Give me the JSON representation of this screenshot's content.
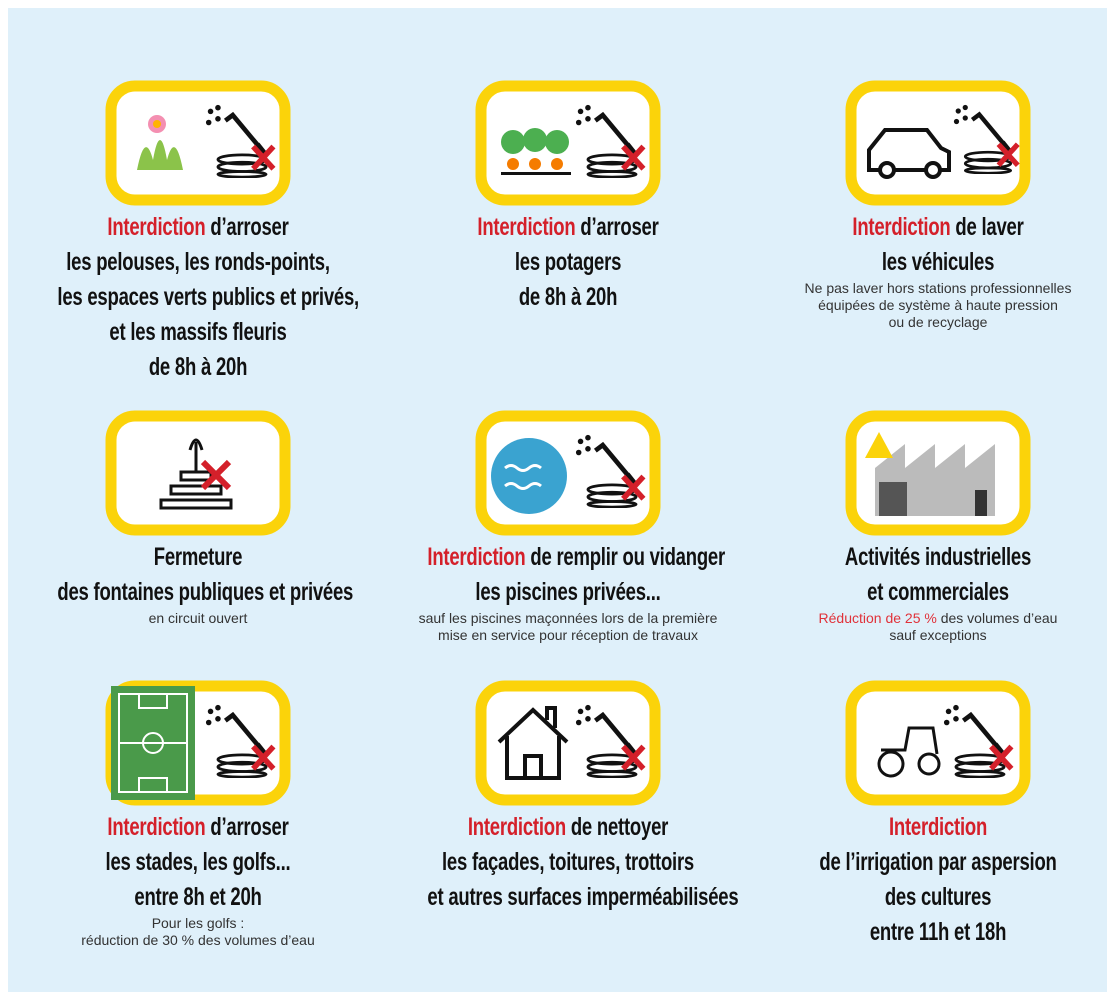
{
  "items": [
    {
      "heading_red": "Interdiction",
      "heading": "d’arroser",
      "lines": [
        "les pelouses, les ronds-points,",
        "les espaces verts publics et privés,",
        "et les massifs fleuris",
        "de 8h à 20h"
      ],
      "notes": []
    },
    {
      "heading_red": "Interdiction",
      "heading": "d’arroser",
      "lines": [
        "les potagers",
        "de 8h à 20h"
      ],
      "notes": []
    },
    {
      "heading_red": "Interdiction",
      "heading": "de laver",
      "lines": [
        "les véhicules"
      ],
      "notes": [
        "Ne pas laver hors stations professionnelles",
        "équipées de système à haute pression",
        "ou de recyclage"
      ]
    },
    {
      "heading": "Fermeture",
      "lines": [
        "des fontaines publiques et privées"
      ],
      "notes": [
        "en circuit ouvert"
      ]
    },
    {
      "heading_red": "Interdiction",
      "heading": "de remplir ou vidanger",
      "lines": [
        "les piscines privées..."
      ],
      "notes": [
        "sauf les piscines maçonnées lors de la première",
        "mise en service pour réception de travaux"
      ]
    },
    {
      "heading": "Activités industrielles",
      "lines": [
        "et commerciales"
      ],
      "note_red": "Réduction de 25 %",
      "notes": [
        "des volumes d’eau",
        "sauf exceptions"
      ]
    },
    {
      "heading_red": "Interdiction",
      "heading": "d’arroser",
      "lines": [
        "les stades, les golfs...",
        "entre 8h et 20h"
      ],
      "notes": [
        "Pour les golfs :",
        "réduction de 30 % des volumes d’eau"
      ]
    },
    {
      "heading_red": "Interdiction",
      "heading": "de nettoyer",
      "lines": [
        "les façades, toitures, trottoirs",
        "et autres surfaces imperméabilisées"
      ],
      "notes": []
    },
    {
      "heading_red": "Interdiction",
      "lines": [
        "de l’irrigation par aspersion",
        "des cultures",
        "entre 11h et 18h"
      ],
      "notes": []
    }
  ]
}
